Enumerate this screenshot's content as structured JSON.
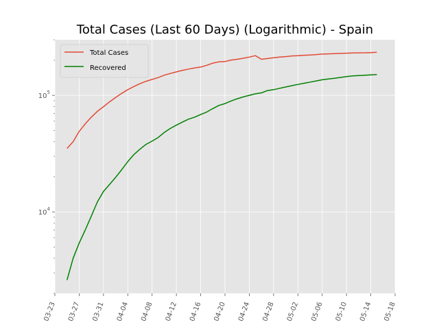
{
  "chart_data": {
    "type": "line",
    "title": "Total Cases (Last 60 Days) (Logarithmic) - Spain",
    "xlabel": "",
    "ylabel": "",
    "yscale": "log",
    "ylim": [
      2000,
      300000
    ],
    "xlim": [
      "2020-03-23",
      "2020-05-18"
    ],
    "grid": true,
    "legend_position": "top-left",
    "x_ticks": [
      "03-23",
      "03-27",
      "03-31",
      "04-04",
      "04-08",
      "04-12",
      "04-16",
      "04-20",
      "04-24",
      "04-28",
      "05-02",
      "05-06",
      "05-10",
      "05-14",
      "05-18"
    ],
    "y_ticks": [
      {
        "value": 10000,
        "label_base": "10",
        "label_exp": "4"
      },
      {
        "value": 100000,
        "label_base": "10",
        "label_exp": "5"
      }
    ],
    "x": [
      "2020-03-25",
      "2020-03-26",
      "2020-03-27",
      "2020-03-28",
      "2020-03-29",
      "2020-03-30",
      "2020-03-31",
      "2020-04-01",
      "2020-04-02",
      "2020-04-03",
      "2020-04-04",
      "2020-04-05",
      "2020-04-06",
      "2020-04-07",
      "2020-04-08",
      "2020-04-09",
      "2020-04-10",
      "2020-04-11",
      "2020-04-12",
      "2020-04-13",
      "2020-04-14",
      "2020-04-15",
      "2020-04-16",
      "2020-04-17",
      "2020-04-18",
      "2020-04-19",
      "2020-04-20",
      "2020-04-21",
      "2020-04-22",
      "2020-04-23",
      "2020-04-24",
      "2020-04-25",
      "2020-04-26",
      "2020-04-27",
      "2020-04-28",
      "2020-04-29",
      "2020-04-30",
      "2020-05-01",
      "2020-05-02",
      "2020-05-03",
      "2020-05-04",
      "2020-05-05",
      "2020-05-06",
      "2020-05-07",
      "2020-05-08",
      "2020-05-09",
      "2020-05-10",
      "2020-05-11",
      "2020-05-12",
      "2020-05-13",
      "2020-05-14",
      "2020-05-15"
    ],
    "series": [
      {
        "name": "Total Cases",
        "color": "#E24A33",
        "values": [
          35000,
          40000,
          49000,
          57000,
          65000,
          73000,
          80000,
          88000,
          96000,
          104000,
          112000,
          119000,
          126000,
          132000,
          137000,
          142000,
          149000,
          154000,
          159000,
          164000,
          168000,
          172000,
          175000,
          181000,
          189000,
          194000,
          195000,
          201000,
          204000,
          208000,
          213000,
          219000,
          204000,
          207000,
          210000,
          213000,
          215000,
          218000,
          219000,
          221000,
          222000,
          224000,
          226000,
          227000,
          228000,
          229000,
          230000,
          231000,
          231500,
          232000,
          233000,
          234000
        ]
      },
      {
        "name": "Recovered",
        "color": "#008000",
        "values": [
          2600,
          4000,
          5400,
          7000,
          9200,
          12200,
          15000,
          17200,
          19800,
          23000,
          27000,
          31000,
          34500,
          38000,
          40500,
          43500,
          48000,
          52000,
          55500,
          59000,
          62500,
          65000,
          68500,
          72000,
          77000,
          82000,
          85000,
          89500,
          93500,
          97000,
          100000,
          103000,
          105000,
          110000,
          112000,
          115000,
          118000,
          121000,
          124000,
          127000,
          130000,
          133000,
          136000,
          138000,
          140000,
          142500,
          145000,
          147000,
          148000,
          149000,
          150000,
          151000
        ]
      }
    ]
  }
}
